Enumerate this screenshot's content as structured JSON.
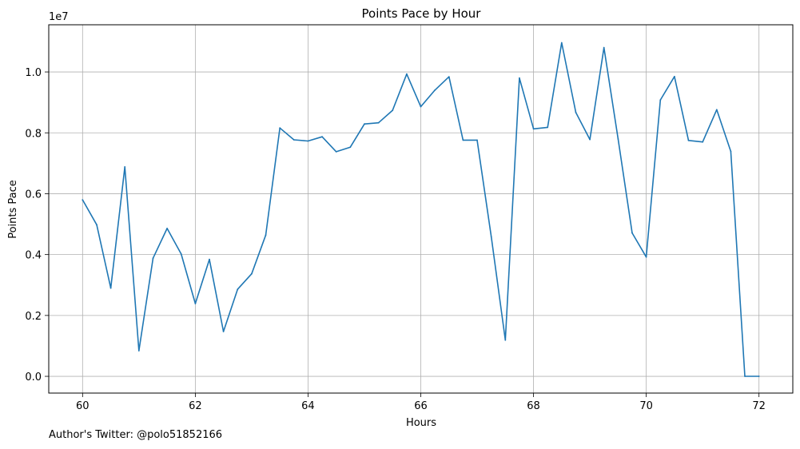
{
  "chart_data": {
    "type": "line",
    "title": "Points Pace by Hour",
    "xlabel": "Hours",
    "ylabel": "Points Pace",
    "y_offset_text": "1e7",
    "xlim": [
      59.4,
      72.6
    ],
    "ylim": [
      -550000,
      11550000
    ],
    "x_ticks": [
      60,
      62,
      64,
      66,
      68,
      70,
      72
    ],
    "x_tick_labels": [
      "60",
      "62",
      "64",
      "66",
      "68",
      "70",
      "72"
    ],
    "y_ticks": [
      0,
      2000000,
      4000000,
      6000000,
      8000000,
      10000000
    ],
    "y_tick_labels": [
      "0.0",
      "0.2",
      "0.4",
      "0.6",
      "0.8",
      "1.0"
    ],
    "grid": true,
    "series": [
      {
        "color": "#1f77b4",
        "x": [
          60.0,
          60.25,
          60.5,
          60.75,
          61.0,
          61.25,
          61.5,
          61.75,
          62.0,
          62.25,
          62.5,
          62.75,
          63.0,
          63.25,
          63.5,
          63.75,
          64.0,
          64.25,
          64.5,
          64.75,
          65.0,
          65.25,
          65.5,
          65.75,
          66.0,
          66.25,
          66.5,
          66.75,
          67.0,
          67.25,
          67.5,
          67.75,
          68.0,
          68.25,
          68.5,
          68.75,
          69.0,
          69.25,
          69.5,
          69.75,
          70.0,
          70.25,
          70.5,
          70.75,
          71.0,
          71.25,
          71.5,
          71.75,
          72.0
        ],
        "y": [
          5800000,
          4980000,
          2900000,
          6880000,
          840000,
          3880000,
          4860000,
          4020000,
          2390000,
          3840000,
          1470000,
          2860000,
          3370000,
          4640000,
          8160000,
          7770000,
          7730000,
          7870000,
          7380000,
          7530000,
          8290000,
          8330000,
          8740000,
          9930000,
          8860000,
          9400000,
          9840000,
          7760000,
          7760000,
          4590000,
          1190000,
          9800000,
          8130000,
          8180000,
          10960000,
          8670000,
          7780000,
          10800000,
          7800000,
          4710000,
          3920000,
          9080000,
          9850000,
          7750000,
          7700000,
          8760000,
          7390000,
          0,
          0
        ]
      }
    ]
  },
  "footer": {
    "author_note": "Author's Twitter: @polo51852166"
  }
}
